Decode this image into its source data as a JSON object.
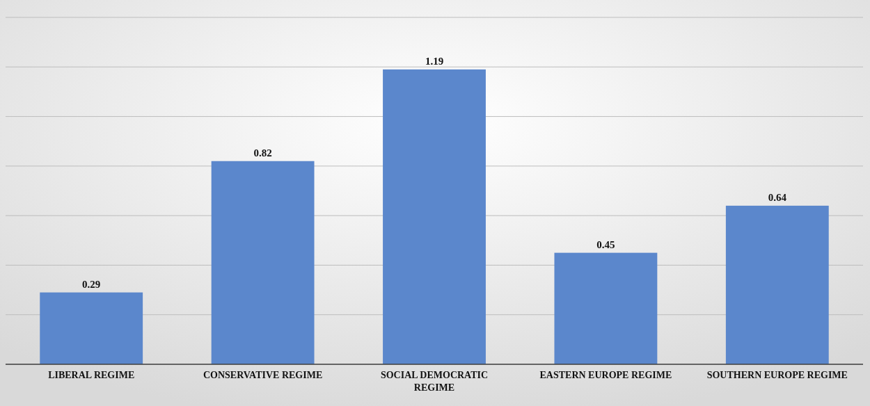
{
  "chart_data": {
    "type": "bar",
    "categories": [
      "LIBERAL REGIME",
      "CONSERVATIVE REGIME",
      "SOCIAL DEMOCRATIC REGIME",
      "EASTERN EUROPE REGIME",
      "SOUTHERN EUROPE REGIME"
    ],
    "values": [
      0.29,
      0.82,
      1.19,
      0.45,
      0.64
    ],
    "color": "#5b87cc",
    "data_labels": true,
    "grid": "y",
    "tick_labels": "x",
    "ylim": [
      0,
      1.4
    ],
    "yticks": [
      {
        "value": 0,
        "label": null
      },
      {
        "value": 0.2,
        "label": null
      },
      {
        "value": 0.4,
        "label": null
      },
      {
        "value": 0.6,
        "label": null
      },
      {
        "value": 0.8,
        "label": null
      },
      {
        "value": 1.0,
        "label": null
      },
      {
        "value": 1.2,
        "label": null
      },
      {
        "value": 1.4,
        "label": null
      }
    ]
  }
}
